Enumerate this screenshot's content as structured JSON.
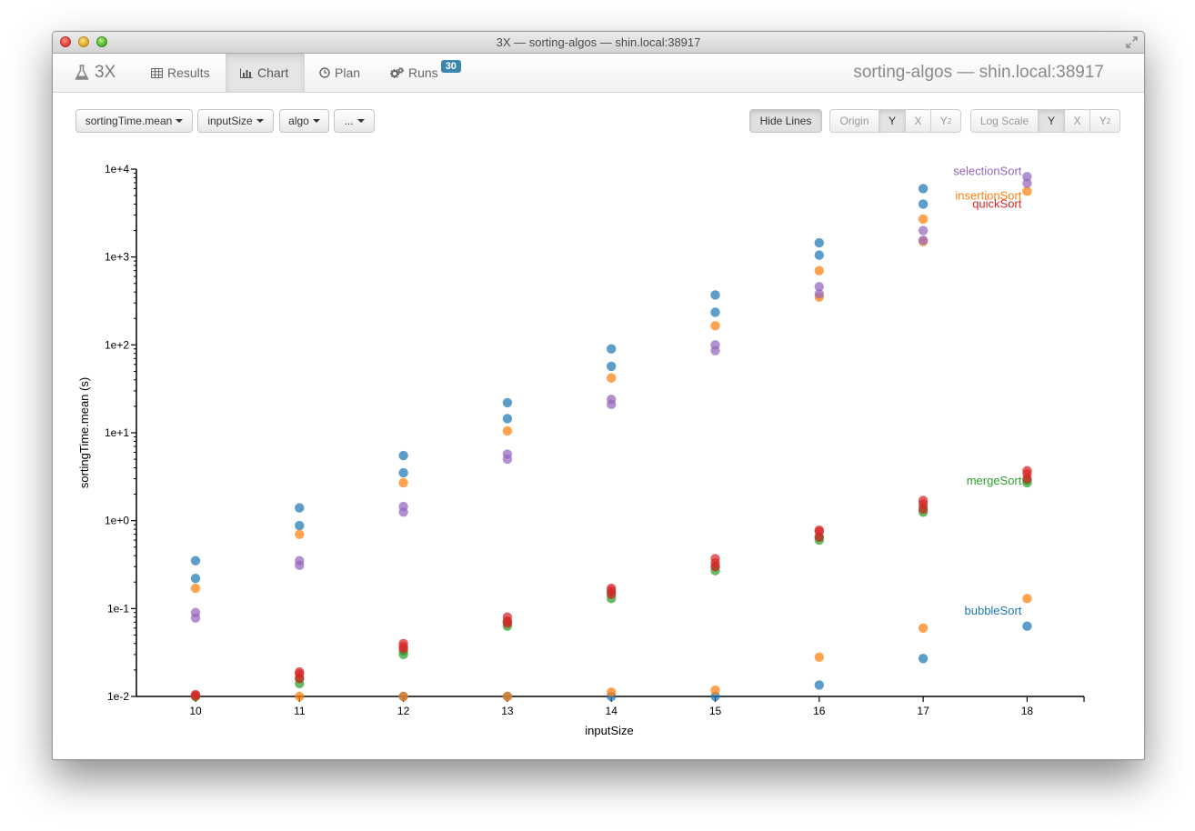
{
  "window": {
    "title": "3X — sorting-algos — shin.local:38917"
  },
  "nav": {
    "brand": "3X",
    "tabs": [
      {
        "label": "Results",
        "icon": "table-icon"
      },
      {
        "label": "Chart",
        "icon": "bar-chart-icon",
        "active": true
      },
      {
        "label": "Plan",
        "icon": "clock-icon"
      },
      {
        "label": "Runs",
        "icon": "cogs-icon",
        "badge": "30"
      }
    ],
    "project_title": "sorting-algos — shin.local:38917"
  },
  "toolbar": {
    "y_select": "sortingTime.mean",
    "x_select": "inputSize",
    "series_select": "algo",
    "more_select": "...",
    "hide_lines": "Hide Lines",
    "origin": {
      "label": "Origin",
      "y": "Y",
      "x": "X",
      "y2": "Y",
      "y2_sub": "2",
      "active": "Y"
    },
    "log_scale": {
      "label": "Log Scale",
      "y": "Y",
      "x": "X",
      "y2": "Y",
      "y2_sub": "2",
      "active": "Y"
    }
  },
  "chart_data": {
    "type": "scatter",
    "xlabel": "inputSize",
    "ylabel": "sortingTime.mean (s)",
    "x_ticks": [
      10,
      11,
      12,
      13,
      14,
      15,
      16,
      17,
      18
    ],
    "y_scale": "log",
    "y_ticks": [
      "1e-2",
      "1e-1",
      "1e+0",
      "1e+1",
      "1e+2",
      "1e+3",
      "1e+4"
    ],
    "ylim": [
      0.01,
      10000
    ],
    "grid": false,
    "series": [
      {
        "name": "bubbleSort",
        "color": "#1f77b4",
        "points": [
          [
            10,
            0.35
          ],
          [
            10,
            0.22
          ],
          [
            11,
            1.4
          ],
          [
            11,
            0.88
          ],
          [
            12,
            5.5
          ],
          [
            12,
            3.5
          ],
          [
            13,
            22
          ],
          [
            13,
            14.5
          ],
          [
            14,
            90
          ],
          [
            14,
            57
          ],
          [
            15,
            370
          ],
          [
            15,
            235
          ],
          [
            16,
            1450
          ],
          [
            16,
            1050
          ],
          [
            17,
            6000
          ],
          [
            17,
            4000
          ],
          [
            12,
            0.01
          ],
          [
            13,
            0.01
          ],
          [
            14,
            0.01
          ],
          [
            15,
            0.01
          ],
          [
            16,
            0.0135
          ],
          [
            17,
            0.027
          ],
          [
            18,
            0.063
          ]
        ]
      },
      {
        "name": "insertionSort",
        "color": "#ff7f0e",
        "points": [
          [
            10,
            0.17
          ],
          [
            11,
            0.7
          ],
          [
            12,
            2.7
          ],
          [
            13,
            10.5
          ],
          [
            14,
            42
          ],
          [
            15,
            165
          ],
          [
            16,
            700
          ],
          [
            17,
            2700
          ],
          [
            18,
            5600
          ],
          [
            10,
            0.01
          ],
          [
            11,
            0.01
          ],
          [
            12,
            0.01
          ],
          [
            13,
            0.01
          ],
          [
            14,
            0.0112
          ],
          [
            15,
            0.0118
          ],
          [
            16,
            0.028
          ],
          [
            17,
            0.06
          ],
          [
            18,
            0.13
          ],
          [
            16,
            350
          ],
          [
            17,
            1500
          ]
        ]
      },
      {
        "name": "selectionSort",
        "color": "#9467bd",
        "points": [
          [
            10,
            0.09
          ],
          [
            10,
            0.078
          ],
          [
            11,
            0.35
          ],
          [
            11,
            0.31
          ],
          [
            12,
            1.45
          ],
          [
            12,
            1.25
          ],
          [
            13,
            5.7
          ],
          [
            13,
            5.0
          ],
          [
            14,
            24
          ],
          [
            14,
            21
          ],
          [
            15,
            100
          ],
          [
            15,
            86
          ],
          [
            16,
            460
          ],
          [
            16,
            380
          ],
          [
            17,
            2000
          ],
          [
            17,
            1550
          ],
          [
            18,
            8200
          ],
          [
            18,
            6900
          ]
        ]
      },
      {
        "name": "mergeSort",
        "color": "#2ca02c",
        "points": [
          [
            10,
            0.01
          ],
          [
            11,
            0.014
          ],
          [
            11,
            0.016
          ],
          [
            12,
            0.03
          ],
          [
            12,
            0.033
          ],
          [
            13,
            0.063
          ],
          [
            13,
            0.07
          ],
          [
            14,
            0.13
          ],
          [
            14,
            0.15
          ],
          [
            15,
            0.27
          ],
          [
            15,
            0.3
          ],
          [
            16,
            0.6
          ],
          [
            16,
            0.65
          ],
          [
            17,
            1.25
          ],
          [
            17,
            1.4
          ],
          [
            18,
            2.7
          ],
          [
            18,
            2.9
          ]
        ]
      },
      {
        "name": "quickSort",
        "color": "#d62728",
        "points": [
          [
            10,
            0.0102
          ],
          [
            10,
            0.0105
          ],
          [
            11,
            0.018
          ],
          [
            11,
            0.016
          ],
          [
            11,
            0.019
          ],
          [
            12,
            0.035
          ],
          [
            12,
            0.04
          ],
          [
            12,
            0.037
          ],
          [
            13,
            0.072
          ],
          [
            13,
            0.08
          ],
          [
            13,
            0.068
          ],
          [
            14,
            0.16
          ],
          [
            14,
            0.17
          ],
          [
            14,
            0.145
          ],
          [
            15,
            0.33
          ],
          [
            15,
            0.37
          ],
          [
            15,
            0.3
          ],
          [
            16,
            0.75
          ],
          [
            16,
            0.78
          ],
          [
            16,
            0.65
          ],
          [
            17,
            1.55
          ],
          [
            17,
            1.7
          ],
          [
            17,
            1.35
          ],
          [
            18,
            3.4
          ],
          [
            18,
            3.7
          ],
          [
            18,
            3.0
          ]
        ]
      }
    ],
    "labels": [
      {
        "series": "selectionSort",
        "text": "selectionSort"
      },
      {
        "series": "insertionSort",
        "text": "insertionSort"
      },
      {
        "series": "quickSort",
        "text": "quickSort"
      },
      {
        "series": "mergeSort",
        "text": "mergeSort"
      },
      {
        "series": "bubbleSort",
        "text": "bubbleSort"
      }
    ]
  }
}
